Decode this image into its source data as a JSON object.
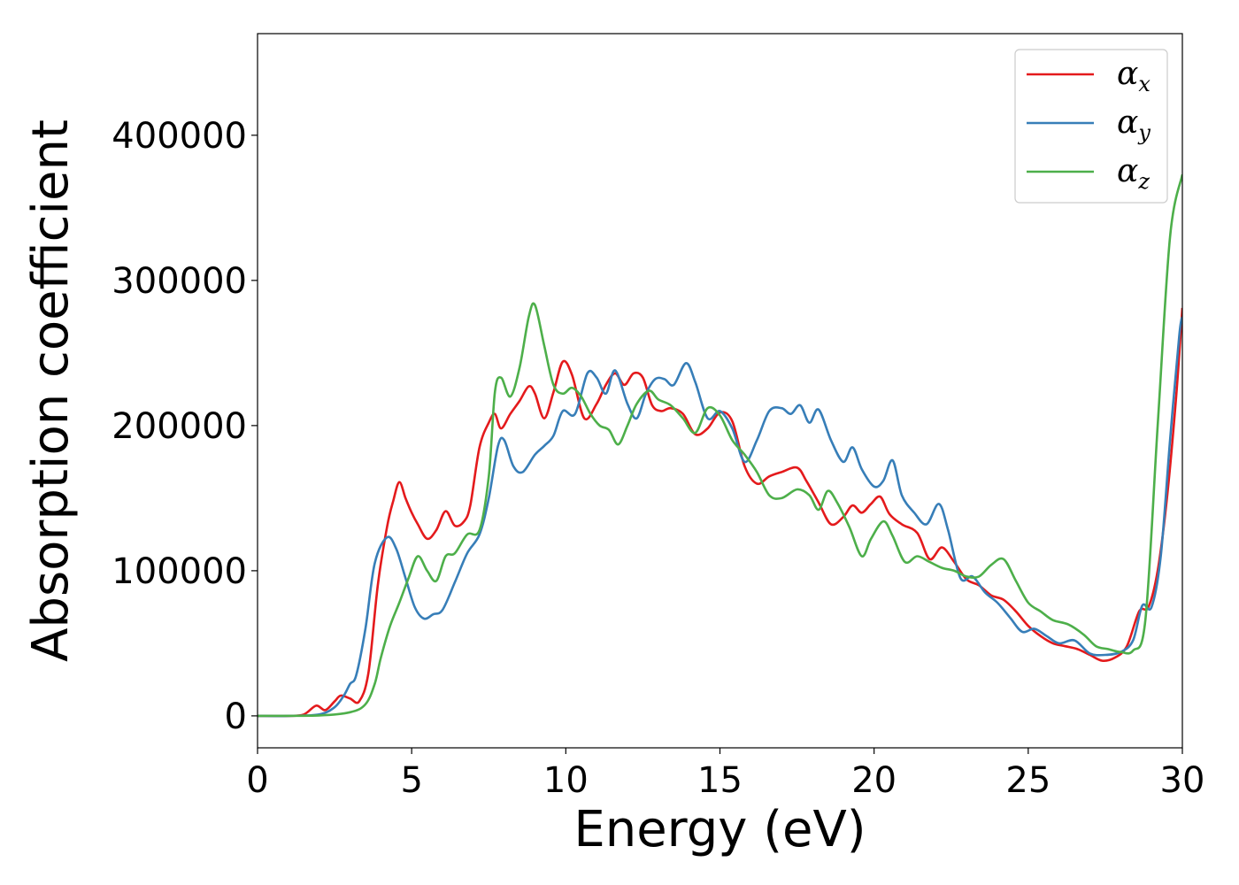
{
  "chart_data": {
    "type": "line",
    "xlabel": "Energy (eV)",
    "ylabel": "Absorption coefficient",
    "xlim": [
      0,
      30
    ],
    "ylim": [
      -22000,
      470000
    ],
    "xticks": [
      0,
      5,
      10,
      15,
      20,
      25,
      30
    ],
    "xtick_labels": [
      "0",
      "5",
      "10",
      "15",
      "20",
      "25",
      "30"
    ],
    "yticks": [
      0,
      100000,
      200000,
      300000,
      400000
    ],
    "ytick_labels": [
      "0",
      "100000",
      "200000",
      "300000",
      "400000"
    ],
    "grid": false,
    "legend_position": "top-right",
    "series": [
      {
        "name": "α",
        "subscript": "x",
        "color": "#e41a1c",
        "points": [
          [
            0,
            0
          ],
          [
            1,
            0
          ],
          [
            1.5,
            1000
          ],
          [
            1.9,
            7000
          ],
          [
            2.2,
            4000
          ],
          [
            2.5,
            10000
          ],
          [
            2.7,
            14000
          ],
          [
            3.0,
            12000
          ],
          [
            3.3,
            10000
          ],
          [
            3.6,
            30000
          ],
          [
            3.9,
            90000
          ],
          [
            4.2,
            130000
          ],
          [
            4.4,
            148000
          ],
          [
            4.6,
            161000
          ],
          [
            4.8,
            150000
          ],
          [
            5.0,
            140000
          ],
          [
            5.2,
            132000
          ],
          [
            5.5,
            122000
          ],
          [
            5.8,
            128000
          ],
          [
            6.1,
            141000
          ],
          [
            6.4,
            131000
          ],
          [
            6.7,
            134000
          ],
          [
            6.9,
            145000
          ],
          [
            7.2,
            185000
          ],
          [
            7.5,
            202000
          ],
          [
            7.7,
            208000
          ],
          [
            7.9,
            198000
          ],
          [
            8.2,
            208000
          ],
          [
            8.5,
            217000
          ],
          [
            8.8,
            227000
          ],
          [
            9.0,
            222000
          ],
          [
            9.3,
            205000
          ],
          [
            9.6,
            223000
          ],
          [
            9.9,
            244000
          ],
          [
            10.2,
            235000
          ],
          [
            10.6,
            205000
          ],
          [
            11.0,
            215000
          ],
          [
            11.3,
            228000
          ],
          [
            11.6,
            236000
          ],
          [
            11.9,
            228000
          ],
          [
            12.2,
            236000
          ],
          [
            12.5,
            233000
          ],
          [
            12.8,
            214000
          ],
          [
            13.1,
            210000
          ],
          [
            13.4,
            212000
          ],
          [
            13.8,
            208000
          ],
          [
            14.2,
            194000
          ],
          [
            14.6,
            198000
          ],
          [
            15.0,
            209000
          ],
          [
            15.4,
            203000
          ],
          [
            15.8,
            172000
          ],
          [
            16.2,
            160000
          ],
          [
            16.6,
            165000
          ],
          [
            17.0,
            168000
          ],
          [
            17.5,
            171000
          ],
          [
            17.8,
            162000
          ],
          [
            18.2,
            147000
          ],
          [
            18.6,
            132000
          ],
          [
            19.0,
            137000
          ],
          [
            19.3,
            145000
          ],
          [
            19.6,
            140000
          ],
          [
            19.9,
            146000
          ],
          [
            20.2,
            151000
          ],
          [
            20.5,
            139000
          ],
          [
            20.9,
            132000
          ],
          [
            21.4,
            126000
          ],
          [
            21.8,
            108000
          ],
          [
            22.2,
            116000
          ],
          [
            22.6,
            106000
          ],
          [
            23.0,
            94000
          ],
          [
            23.4,
            90000
          ],
          [
            23.8,
            83000
          ],
          [
            24.2,
            80000
          ],
          [
            24.6,
            72000
          ],
          [
            25.0,
            62000
          ],
          [
            25.4,
            55000
          ],
          [
            25.8,
            50000
          ],
          [
            26.2,
            48000
          ],
          [
            26.6,
            46000
          ],
          [
            27.0,
            42000
          ],
          [
            27.4,
            38000
          ],
          [
            27.8,
            40000
          ],
          [
            28.2,
            48000
          ],
          [
            28.6,
            72000
          ],
          [
            28.9,
            75000
          ],
          [
            29.2,
            100000
          ],
          [
            29.5,
            150000
          ],
          [
            29.8,
            220000
          ],
          [
            30,
            281000
          ]
        ]
      },
      {
        "name": "α",
        "subscript": "y",
        "color": "#377eb8",
        "points": [
          [
            0,
            0
          ],
          [
            1,
            0
          ],
          [
            2,
            1000
          ],
          [
            2.5,
            6000
          ],
          [
            2.8,
            14000
          ],
          [
            3.0,
            22000
          ],
          [
            3.2,
            28000
          ],
          [
            3.5,
            60000
          ],
          [
            3.8,
            105000
          ],
          [
            4.2,
            123000
          ],
          [
            4.5,
            115000
          ],
          [
            4.8,
            95000
          ],
          [
            5.1,
            75000
          ],
          [
            5.4,
            67000
          ],
          [
            5.7,
            70000
          ],
          [
            6.0,
            73000
          ],
          [
            6.4,
            92000
          ],
          [
            6.8,
            112000
          ],
          [
            7.2,
            125000
          ],
          [
            7.5,
            150000
          ],
          [
            7.8,
            186000
          ],
          [
            8.0,
            190000
          ],
          [
            8.3,
            172000
          ],
          [
            8.6,
            168000
          ],
          [
            9.0,
            180000
          ],
          [
            9.3,
            186000
          ],
          [
            9.6,
            193000
          ],
          [
            9.9,
            210000
          ],
          [
            10.3,
            208000
          ],
          [
            10.7,
            236000
          ],
          [
            11.0,
            233000
          ],
          [
            11.3,
            222000
          ],
          [
            11.6,
            238000
          ],
          [
            12.0,
            215000
          ],
          [
            12.3,
            205000
          ],
          [
            12.6,
            222000
          ],
          [
            12.9,
            232000
          ],
          [
            13.2,
            232000
          ],
          [
            13.5,
            228000
          ],
          [
            13.9,
            243000
          ],
          [
            14.2,
            230000
          ],
          [
            14.6,
            205000
          ],
          [
            15.0,
            210000
          ],
          [
            15.4,
            198000
          ],
          [
            15.8,
            175000
          ],
          [
            16.2,
            190000
          ],
          [
            16.6,
            210000
          ],
          [
            17.0,
            212000
          ],
          [
            17.3,
            208000
          ],
          [
            17.6,
            214000
          ],
          [
            17.9,
            202000
          ],
          [
            18.2,
            211000
          ],
          [
            18.6,
            190000
          ],
          [
            19.0,
            175000
          ],
          [
            19.3,
            185000
          ],
          [
            19.6,
            170000
          ],
          [
            20.0,
            158000
          ],
          [
            20.3,
            162000
          ],
          [
            20.6,
            176000
          ],
          [
            20.9,
            152000
          ],
          [
            21.3,
            140000
          ],
          [
            21.7,
            132000
          ],
          [
            22.1,
            146000
          ],
          [
            22.4,
            128000
          ],
          [
            22.8,
            95000
          ],
          [
            23.2,
            96000
          ],
          [
            23.6,
            85000
          ],
          [
            24.0,
            78000
          ],
          [
            24.4,
            68000
          ],
          [
            24.8,
            58000
          ],
          [
            25.2,
            60000
          ],
          [
            25.6,
            55000
          ],
          [
            26.0,
            50000
          ],
          [
            26.5,
            52000
          ],
          [
            27.0,
            43000
          ],
          [
            27.5,
            42000
          ],
          [
            28.0,
            44000
          ],
          [
            28.4,
            52000
          ],
          [
            28.7,
            76000
          ],
          [
            29.0,
            75000
          ],
          [
            29.3,
            110000
          ],
          [
            29.6,
            190000
          ],
          [
            29.9,
            262000
          ],
          [
            30,
            275000
          ]
        ]
      },
      {
        "name": "α",
        "subscript": "z",
        "color": "#4daf4a",
        "points": [
          [
            0,
            0
          ],
          [
            2,
            300
          ],
          [
            3,
            2500
          ],
          [
            3.5,
            8000
          ],
          [
            3.8,
            22000
          ],
          [
            4.0,
            40000
          ],
          [
            4.3,
            62000
          ],
          [
            4.6,
            78000
          ],
          [
            4.9,
            95000
          ],
          [
            5.2,
            110000
          ],
          [
            5.5,
            100000
          ],
          [
            5.8,
            93000
          ],
          [
            6.1,
            110000
          ],
          [
            6.4,
            112000
          ],
          [
            6.8,
            125000
          ],
          [
            7.2,
            128000
          ],
          [
            7.5,
            165000
          ],
          [
            7.7,
            223000
          ],
          [
            7.9,
            233000
          ],
          [
            8.2,
            220000
          ],
          [
            8.5,
            240000
          ],
          [
            8.8,
            275000
          ],
          [
            9.0,
            283000
          ],
          [
            9.3,
            255000
          ],
          [
            9.6,
            228000
          ],
          [
            9.9,
            222000
          ],
          [
            10.2,
            226000
          ],
          [
            10.5,
            220000
          ],
          [
            10.8,
            208000
          ],
          [
            11.1,
            200000
          ],
          [
            11.4,
            197000
          ],
          [
            11.7,
            187000
          ],
          [
            12.0,
            200000
          ],
          [
            12.3,
            215000
          ],
          [
            12.7,
            224000
          ],
          [
            13.0,
            218000
          ],
          [
            13.4,
            214000
          ],
          [
            13.8,
            205000
          ],
          [
            14.2,
            195000
          ],
          [
            14.6,
            212000
          ],
          [
            15.0,
            207000
          ],
          [
            15.4,
            190000
          ],
          [
            15.8,
            180000
          ],
          [
            16.2,
            168000
          ],
          [
            16.6,
            152000
          ],
          [
            17.0,
            150000
          ],
          [
            17.5,
            156000
          ],
          [
            17.9,
            152000
          ],
          [
            18.2,
            142000
          ],
          [
            18.5,
            155000
          ],
          [
            18.8,
            147000
          ],
          [
            19.2,
            130000
          ],
          [
            19.6,
            110000
          ],
          [
            19.9,
            122000
          ],
          [
            20.3,
            134000
          ],
          [
            20.6,
            124000
          ],
          [
            21.0,
            106000
          ],
          [
            21.4,
            110000
          ],
          [
            21.8,
            106000
          ],
          [
            22.2,
            102000
          ],
          [
            22.6,
            100000
          ],
          [
            23.0,
            96000
          ],
          [
            23.4,
            96000
          ],
          [
            23.8,
            104000
          ],
          [
            24.2,
            108000
          ],
          [
            24.6,
            93000
          ],
          [
            25.0,
            78000
          ],
          [
            25.4,
            72000
          ],
          [
            25.8,
            66000
          ],
          [
            26.3,
            63000
          ],
          [
            26.8,
            56000
          ],
          [
            27.2,
            48000
          ],
          [
            27.6,
            46000
          ],
          [
            28.0,
            44000
          ],
          [
            28.4,
            45000
          ],
          [
            28.8,
            66000
          ],
          [
            29.2,
            200000
          ],
          [
            29.6,
            330000
          ],
          [
            30,
            373000
          ]
        ]
      }
    ]
  }
}
